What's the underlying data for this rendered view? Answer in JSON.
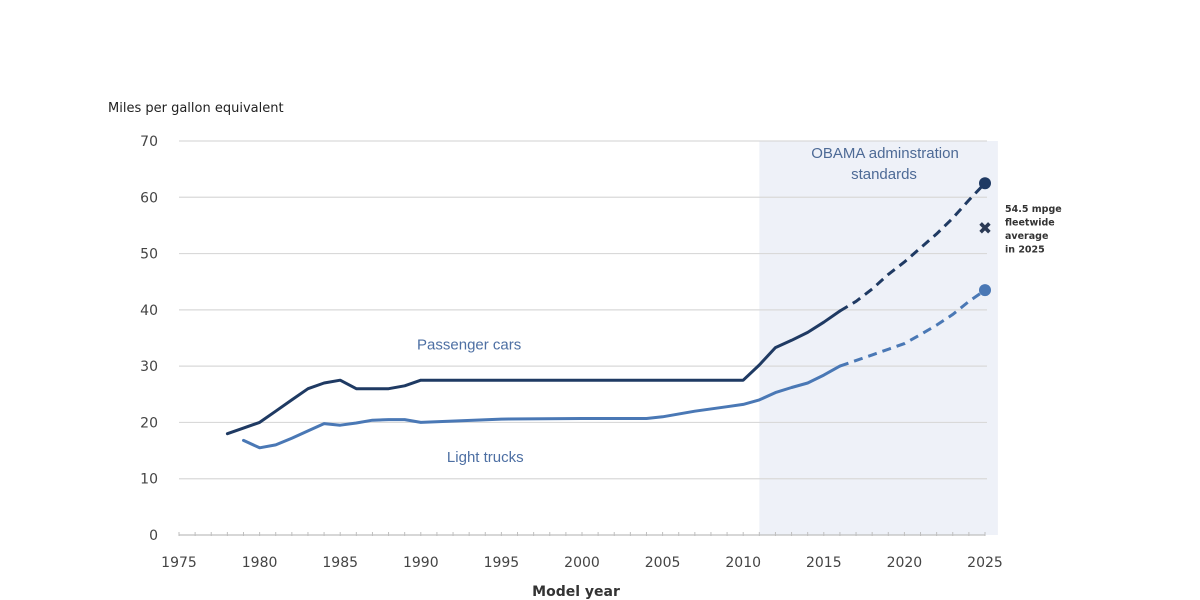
{
  "chart_data": {
    "type": "line",
    "title": "",
    "ylabel": "Miles per gallon equivalent",
    "xlabel": "Model year",
    "xlim": [
      1975,
      2025
    ],
    "ylim": [
      0,
      70
    ],
    "x_ticks": [
      "1975",
      "1980",
      "1985",
      "1990",
      "1995",
      "2000",
      "2005",
      "2010",
      "2015",
      "2020",
      "2025"
    ],
    "y_ticks": [
      "0",
      "10",
      "20",
      "30",
      "40",
      "50",
      "60",
      "70"
    ],
    "grid": "horizontal",
    "shaded_region": {
      "x_range": [
        2011,
        2025.8
      ],
      "label_line1": "OBAMA adminstration",
      "label_line2": "standards",
      "color": "#eef1f8"
    },
    "series": [
      {
        "name": "Passenger cars",
        "label": "Passenger cars",
        "color": "#1f3a63",
        "actual": [
          [
            1978,
            18.0
          ],
          [
            1979,
            19.0
          ],
          [
            1980,
            20.0
          ],
          [
            1981,
            22.0
          ],
          [
            1982,
            24.0
          ],
          [
            1983,
            26.0
          ],
          [
            1984,
            27.0
          ],
          [
            1985,
            27.5
          ],
          [
            1986,
            26.0
          ],
          [
            1987,
            26.0
          ],
          [
            1988,
            26.0
          ],
          [
            1989,
            26.5
          ],
          [
            1990,
            27.5
          ],
          [
            1995,
            27.5
          ],
          [
            2000,
            27.5
          ],
          [
            2005,
            27.5
          ],
          [
            2010,
            27.5
          ],
          [
            2011,
            30.2
          ],
          [
            2012,
            33.3
          ],
          [
            2013,
            34.6
          ],
          [
            2014,
            36.0
          ],
          [
            2015,
            37.8
          ],
          [
            2016,
            39.8
          ]
        ],
        "projected": [
          [
            2016,
            39.8
          ],
          [
            2017,
            41.5
          ],
          [
            2018,
            43.7
          ],
          [
            2019,
            46.3
          ],
          [
            2020,
            48.5
          ],
          [
            2021,
            51.0
          ],
          [
            2022,
            53.5
          ],
          [
            2023,
            56.3
          ],
          [
            2024,
            59.5
          ],
          [
            2025,
            62.5
          ]
        ]
      },
      {
        "name": "Light trucks",
        "label": "Light trucks",
        "color": "#4a78b5",
        "actual": [
          [
            1979,
            16.8
          ],
          [
            1980,
            15.5
          ],
          [
            1981,
            16.0
          ],
          [
            1982,
            17.2
          ],
          [
            1983,
            18.5
          ],
          [
            1984,
            19.8
          ],
          [
            1985,
            19.5
          ],
          [
            1986,
            19.9
          ],
          [
            1987,
            20.4
          ],
          [
            1988,
            20.5
          ],
          [
            1989,
            20.5
          ],
          [
            1990,
            20.0
          ],
          [
            1995,
            20.6
          ],
          [
            2000,
            20.7
          ],
          [
            2004,
            20.7
          ],
          [
            2005,
            21.0
          ],
          [
            2007,
            22.0
          ],
          [
            2009,
            22.8
          ],
          [
            2010,
            23.2
          ],
          [
            2011,
            24.0
          ],
          [
            2012,
            25.3
          ],
          [
            2013,
            26.2
          ],
          [
            2014,
            27.0
          ],
          [
            2015,
            28.4
          ],
          [
            2016,
            30.0
          ]
        ],
        "projected": [
          [
            2016,
            30.0
          ],
          [
            2018,
            32.0
          ],
          [
            2020,
            34.0
          ],
          [
            2021,
            35.6
          ],
          [
            2022,
            37.3
          ],
          [
            2023,
            39.2
          ],
          [
            2024,
            41.5
          ],
          [
            2025,
            43.5
          ]
        ]
      }
    ],
    "endpoint_markers": [
      {
        "series": "Passenger cars",
        "x": 2025,
        "y": 62.5
      },
      {
        "series": "Light trucks",
        "x": 2025,
        "y": 43.5
      }
    ],
    "fleet_marker": {
      "x": 2025,
      "y": 54.5,
      "symbol": "✖",
      "color": "#2b3a55",
      "note_lines": [
        "54.5 mpge",
        "fleetwide",
        "average",
        "in 2025"
      ]
    },
    "annotations": [
      {
        "text": "Passenger cars",
        "x": 1993,
        "y": 33
      },
      {
        "text": "Light trucks",
        "x": 1994,
        "y": 13
      }
    ]
  }
}
